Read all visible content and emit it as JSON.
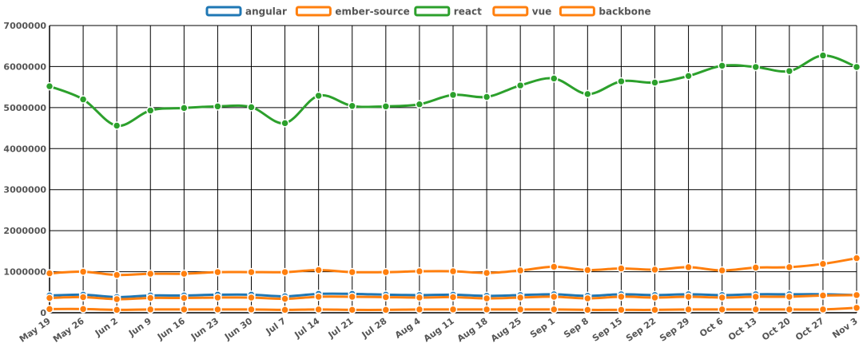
{
  "chart_data": {
    "type": "line",
    "categories": [
      "May 19",
      "May 26",
      "Jun 2",
      "Jun 9",
      "Jun 16",
      "Jun 23",
      "Jun 30",
      "Jul 7",
      "Jul 14",
      "Jul 21",
      "Jul 28",
      "Aug 4",
      "Aug 11",
      "Aug 18",
      "Aug 25",
      "Sep 1",
      "Sep 8",
      "Sep 15",
      "Sep 22",
      "Sep 29",
      "Oct 6",
      "Oct 13",
      "Oct 20",
      "Oct 27",
      "Nov 3"
    ],
    "ylim": [
      0,
      7000000
    ],
    "yticks": [
      0,
      1000000,
      2000000,
      3000000,
      4000000,
      5000000,
      6000000,
      7000000
    ],
    "ytick_labels": [
      "0",
      "1000000",
      "2000000",
      "3000000",
      "4000000",
      "5000000",
      "6000000",
      "7000000"
    ],
    "grid": true,
    "legend_position": "top-center",
    "series": [
      {
        "name": "angular",
        "color": "#1f77b4",
        "values": [
          420000,
          440000,
          380000,
          420000,
          420000,
          440000,
          440000,
          400000,
          460000,
          460000,
          440000,
          430000,
          440000,
          410000,
          430000,
          450000,
          410000,
          450000,
          430000,
          450000,
          430000,
          450000,
          450000,
          450000,
          430000
        ]
      },
      {
        "name": "ember-source",
        "color": "#ff7f0e",
        "values": [
          360000,
          380000,
          330000,
          360000,
          360000,
          370000,
          370000,
          340000,
          390000,
          390000,
          380000,
          370000,
          380000,
          350000,
          370000,
          390000,
          350000,
          390000,
          370000,
          390000,
          370000,
          390000,
          390000,
          420000,
          430000
        ]
      },
      {
        "name": "react",
        "color": "#2ca02c",
        "values": [
          5520000,
          5200000,
          4560000,
          4930000,
          4990000,
          5030000,
          5010000,
          4620000,
          5290000,
          5040000,
          5030000,
          5080000,
          5310000,
          5260000,
          5540000,
          5710000,
          5330000,
          5640000,
          5610000,
          5770000,
          6020000,
          5990000,
          5890000,
          6270000,
          5990000
        ]
      },
      {
        "name": "vue",
        "color": "#ff7f0e",
        "values": [
          960000,
          1000000,
          920000,
          950000,
          950000,
          990000,
          990000,
          990000,
          1040000,
          990000,
          990000,
          1010000,
          1010000,
          970000,
          1030000,
          1120000,
          1040000,
          1080000,
          1050000,
          1110000,
          1030000,
          1100000,
          1110000,
          1190000,
          1330000
        ]
      },
      {
        "name": "backbone",
        "color": "#ff7f0e",
        "values": [
          90000,
          90000,
          70000,
          80000,
          80000,
          80000,
          80000,
          70000,
          80000,
          70000,
          70000,
          80000,
          80000,
          80000,
          80000,
          80000,
          70000,
          70000,
          70000,
          80000,
          80000,
          80000,
          80000,
          80000,
          120000
        ]
      }
    ]
  }
}
